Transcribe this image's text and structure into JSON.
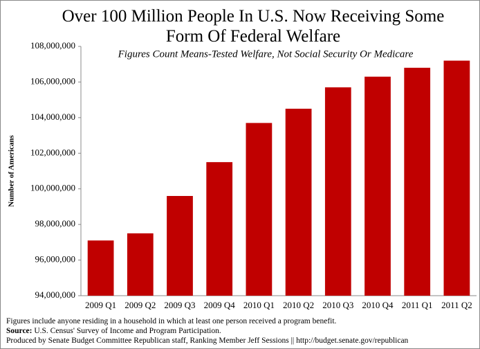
{
  "chart_data": {
    "type": "bar",
    "title": "Over 100 Million People In U.S. Now Receiving Some Form Of Federal Welfare",
    "subtitle": "Figures Count Means-Tested Welfare, Not Social Security Or Medicare",
    "y_label": "Number of Americans",
    "categories": [
      "2009 Q1",
      "2009 Q2",
      "2009 Q3",
      "2009 Q4",
      "2010 Q1",
      "2010 Q2",
      "2010 Q3",
      "2010 Q4",
      "2011 Q1",
      "2011 Q2"
    ],
    "values": [
      97100000,
      97500000,
      99600000,
      101500000,
      103700000,
      104500000,
      105700000,
      106300000,
      106800000,
      107200000
    ],
    "color": "#c00000",
    "ylim": [
      94000000,
      108000000
    ],
    "yticks": [
      {
        "value": 94000000,
        "label": "94,000,000"
      },
      {
        "value": 96000000,
        "label": "96,000,000"
      },
      {
        "value": 98000000,
        "label": "98,000,000"
      },
      {
        "value": 100000000,
        "label": "100,000,000"
      },
      {
        "value": 102000000,
        "label": "102,000,000"
      },
      {
        "value": 104000000,
        "label": "104,000,000"
      },
      {
        "value": 106000000,
        "label": "106,000,000"
      },
      {
        "value": 108000000,
        "label": "108,000,000"
      }
    ],
    "grid": false,
    "notes": {
      "note": "Figures include anyone residing in a household in which at least one person received a program benefit.",
      "source_label": "Source:",
      "source": "U.S. Census' Survey of Income and Program Participation.",
      "credit": "Produced by Senate Budget Committee Republican staff, Ranking Member Jeff Sessions || http://budget.senate.gov/republican"
    }
  }
}
